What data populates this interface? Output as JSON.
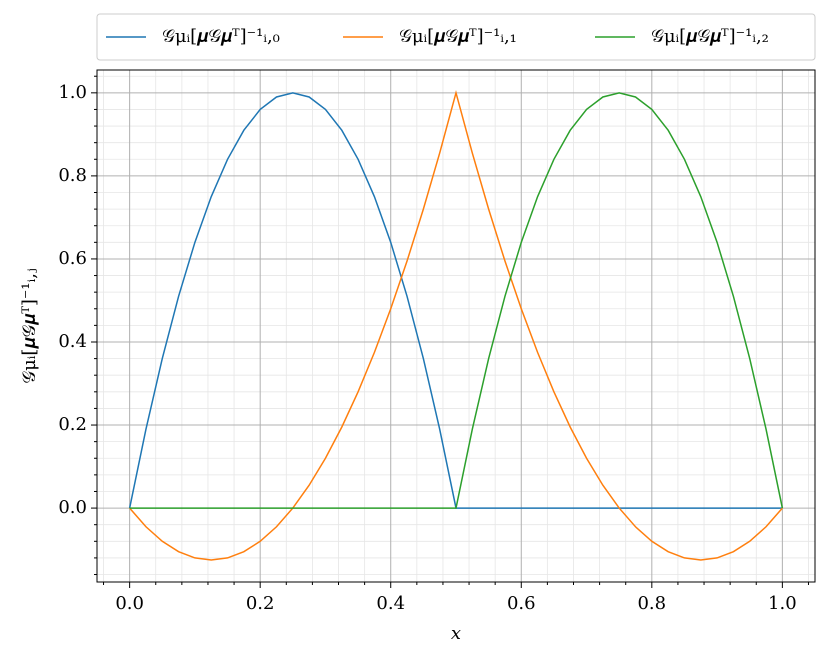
{
  "chart_data": {
    "type": "line",
    "xlabel": "x",
    "ylabel": "𝒢μᵢ[𝝁𝒢𝝁ᵀ]⁻¹ᵢ,ⱼ",
    "x": [
      0,
      0.025,
      0.05,
      0.075,
      0.1,
      0.125,
      0.15,
      0.175,
      0.2,
      0.225,
      0.25,
      0.275,
      0.3,
      0.325,
      0.35,
      0.375,
      0.4,
      0.425,
      0.45,
      0.475,
      0.5,
      0.525,
      0.55,
      0.575,
      0.6,
      0.625,
      0.65,
      0.675,
      0.7,
      0.725,
      0.75,
      0.775,
      0.8,
      0.825,
      0.85,
      0.875,
      0.9,
      0.925,
      0.95,
      0.975,
      1
    ],
    "series": [
      {
        "name": "𝒢μᵢ[𝝁𝒢𝝁ᵀ]⁻¹ᵢ,₀",
        "color": "#1f77b4",
        "values": [
          0,
          0.19,
          0.36,
          0.51,
          0.64,
          0.75,
          0.84,
          0.91,
          0.96,
          0.99,
          1,
          0.99,
          0.96,
          0.91,
          0.84,
          0.75,
          0.64,
          0.51,
          0.36,
          0.19,
          0,
          0,
          0,
          0,
          0,
          0,
          0,
          0,
          0,
          0,
          0,
          0,
          0,
          0,
          0,
          0,
          0,
          0,
          0,
          0,
          0
        ]
      },
      {
        "name": "𝒢μᵢ[𝝁𝒢𝝁ᵀ]⁻¹ᵢ,₁",
        "color": "#ff7f0e",
        "values": [
          0,
          -0.045,
          -0.08,
          -0.105,
          -0.12,
          -0.125,
          -0.12,
          -0.105,
          -0.08,
          -0.045,
          0,
          0.055,
          0.12,
          0.195,
          0.28,
          0.375,
          0.48,
          0.595,
          0.72,
          0.855,
          1,
          0.855,
          0.72,
          0.595,
          0.48,
          0.375,
          0.28,
          0.195,
          0.12,
          0.055,
          0,
          -0.045,
          -0.08,
          -0.105,
          -0.12,
          -0.125,
          -0.12,
          -0.105,
          -0.08,
          -0.045,
          0
        ]
      },
      {
        "name": "𝒢μᵢ[𝝁𝒢𝝁ᵀ]⁻¹ᵢ,₂",
        "color": "#2ca02c",
        "values": [
          0,
          0,
          0,
          0,
          0,
          0,
          0,
          0,
          0,
          0,
          0,
          0,
          0,
          0,
          0,
          0,
          0,
          0,
          0,
          0,
          0,
          0.19,
          0.36,
          0.51,
          0.64,
          0.75,
          0.84,
          0.91,
          0.96,
          0.99,
          1,
          0.99,
          0.96,
          0.91,
          0.84,
          0.75,
          0.64,
          0.51,
          0.36,
          0.19,
          0
        ]
      }
    ],
    "xlim": [
      -0.05,
      1.05
    ],
    "ylim": [
      -0.178,
      1.055
    ],
    "xticks": [
      {
        "value": 0,
        "label": "0.0"
      },
      0.2,
      0.4,
      0.6,
      0.8,
      {
        "value": 1,
        "label": "1.0"
      }
    ],
    "yticks": [
      {
        "value": 0,
        "label": "0.0"
      },
      0.2,
      0.4,
      0.6,
      0.8,
      {
        "value": 1,
        "label": "1.0"
      }
    ],
    "xminor": [
      -0.04,
      0.04,
      0.08,
      0.12,
      0.16,
      0.24,
      0.28,
      0.32,
      0.36,
      0.44,
      0.48,
      0.52,
      0.56,
      0.64,
      0.68,
      0.72,
      0.76,
      0.84,
      0.88,
      0.92,
      0.96,
      1.04
    ],
    "yminor": [
      -0.16,
      -0.12,
      -0.08,
      -0.04,
      0.04,
      0.08,
      0.12,
      0.16,
      0.24,
      0.28,
      0.32,
      0.36,
      0.44,
      0.48,
      0.52,
      0.56,
      0.64,
      0.68,
      0.72,
      0.76,
      0.84,
      0.88,
      0.92,
      0.96,
      1.04
    ],
    "grid": true,
    "legend": "top"
  }
}
